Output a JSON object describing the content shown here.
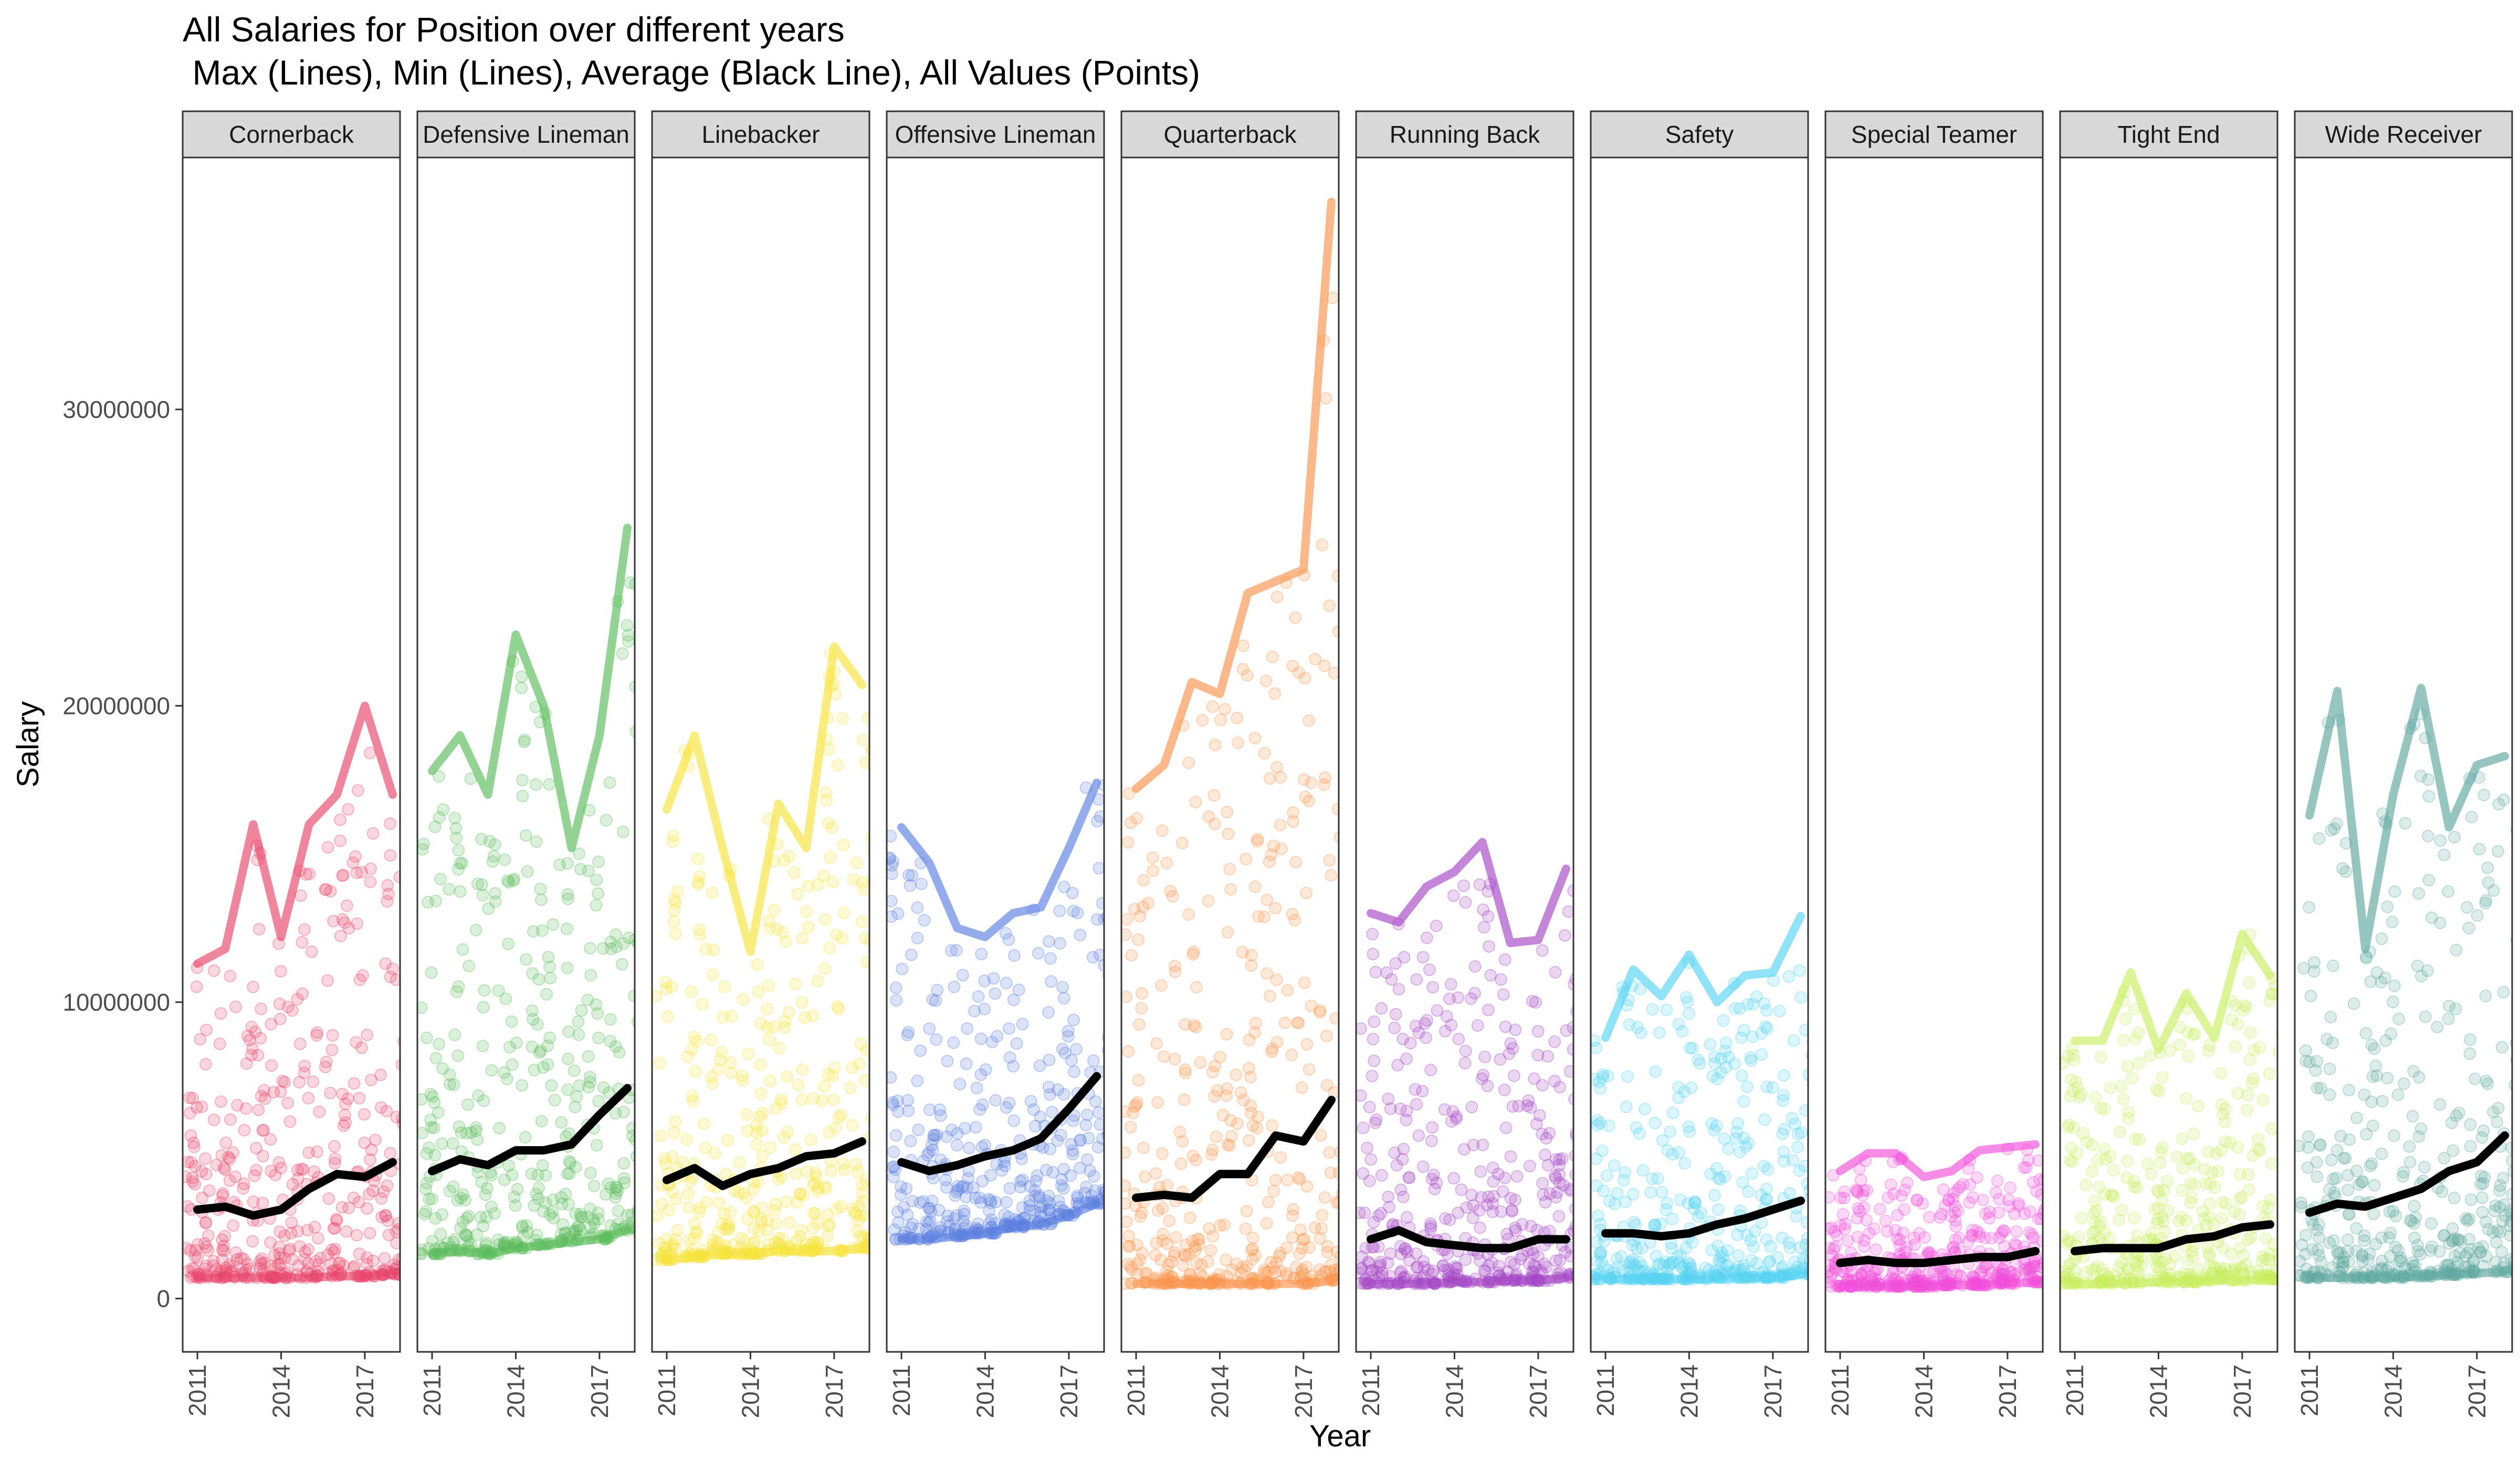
{
  "title_line1": "All Salaries for Position over different years",
  "title_line2": " Max (Lines), Min (Lines), Average (Black Line), All Values (Points)",
  "chart_data": {
    "type": "line",
    "layout": "faceted small multiples, one panel per position, shared y axis",
    "xlabel": "Year",
    "ylabel": "Salary",
    "x": [
      2011,
      2012,
      2013,
      2014,
      2015,
      2016,
      2017,
      2018
    ],
    "x_ticks": [
      "2011",
      "2014",
      "2017"
    ],
    "y_ticks": [
      "0",
      "10000000",
      "20000000",
      "30000000"
    ],
    "ylim": [
      -1800000,
      38500000
    ],
    "grid": false,
    "legend": "none",
    "panels": [
      {
        "name": "Cornerback",
        "color": "#e8436a",
        "max": [
          11300000,
          11800000,
          16000000,
          12200000,
          16000000,
          17000000,
          20000000,
          17000000
        ],
        "avg": [
          3000000,
          3100000,
          2800000,
          3000000,
          3700000,
          4200000,
          4100000,
          4600000
        ],
        "min": [
          700000,
          700000,
          700000,
          700000,
          700000,
          750000,
          750000,
          800000
        ]
      },
      {
        "name": "Defensive Lineman",
        "color": "#59bc59",
        "max": [
          17800000,
          19000000,
          17000000,
          22400000,
          20000000,
          15200000,
          19000000,
          26000000
        ],
        "avg": [
          4300000,
          4700000,
          4500000,
          5000000,
          5000000,
          5200000,
          6200000,
          7100000
        ],
        "min": [
          1500000,
          1600000,
          1500000,
          1700000,
          1800000,
          1900000,
          2000000,
          2300000
        ]
      },
      {
        "name": "Linebacker",
        "color": "#f7e33a",
        "max": [
          16500000,
          19000000,
          15200000,
          11700000,
          16700000,
          15200000,
          22000000,
          20700000
        ],
        "avg": [
          4000000,
          4400000,
          3800000,
          4200000,
          4400000,
          4800000,
          4900000,
          5300000
        ],
        "min": [
          1300000,
          1400000,
          1500000,
          1500000,
          1600000,
          1600000,
          1600000,
          1700000
        ]
      },
      {
        "name": "Offensive Lineman",
        "color": "#5b7fe0",
        "max": [
          15900000,
          14700000,
          12500000,
          12200000,
          13000000,
          13200000,
          15200000,
          17400000
        ],
        "avg": [
          4600000,
          4300000,
          4500000,
          4800000,
          5000000,
          5400000,
          6400000,
          7500000
        ],
        "min": [
          2000000,
          2000000,
          2100000,
          2200000,
          2400000,
          2500000,
          2800000,
          3200000
        ]
      },
      {
        "name": "Quarterback",
        "color": "#f9944d",
        "max": [
          17200000,
          18000000,
          20800000,
          20400000,
          23800000,
          24200000,
          24600000,
          37000000
        ],
        "avg": [
          3400000,
          3500000,
          3400000,
          4200000,
          4200000,
          5500000,
          5300000,
          6700000
        ],
        "min": [
          500000,
          500000,
          500000,
          500000,
          500000,
          500000,
          500000,
          600000
        ]
      },
      {
        "name": "Running Back",
        "color": "#a445c4",
        "max": [
          13000000,
          12700000,
          13900000,
          14400000,
          15400000,
          12000000,
          12100000,
          14500000
        ],
        "avg": [
          2000000,
          2300000,
          1900000,
          1800000,
          1700000,
          1700000,
          2000000,
          2000000
        ],
        "min": [
          500000,
          500000,
          500000,
          550000,
          550000,
          600000,
          600000,
          700000
        ]
      },
      {
        "name": "Safety",
        "color": "#55d3f2",
        "max": [
          8800000,
          11100000,
          10200000,
          11600000,
          10000000,
          10900000,
          11000000,
          12900000
        ],
        "avg": [
          2200000,
          2200000,
          2100000,
          2200000,
          2500000,
          2700000,
          3000000,
          3300000
        ],
        "min": [
          650000,
          650000,
          650000,
          650000,
          650000,
          700000,
          700000,
          800000
        ]
      },
      {
        "name": "Special Teamer",
        "color": "#f04fd9",
        "max": [
          4300000,
          4900000,
          4900000,
          4100000,
          4300000,
          5000000,
          5100000,
          5200000
        ],
        "avg": [
          1200000,
          1300000,
          1200000,
          1200000,
          1300000,
          1400000,
          1400000,
          1600000
        ],
        "min": [
          400000,
          400000,
          400000,
          400000,
          450000,
          450000,
          500000,
          550000
        ]
      },
      {
        "name": "Tight End",
        "color": "#c8ee5f",
        "max": [
          8700000,
          8700000,
          11000000,
          8400000,
          10300000,
          8800000,
          12300000,
          10900000
        ],
        "avg": [
          1600000,
          1700000,
          1700000,
          1700000,
          2000000,
          2100000,
          2400000,
          2500000
        ],
        "min": [
          500000,
          500000,
          500000,
          550000,
          550000,
          600000,
          600000,
          650000
        ]
      },
      {
        "name": "Wide Receiver",
        "color": "#5fa89f",
        "max": [
          16300000,
          20500000,
          11800000,
          17000000,
          20600000,
          15900000,
          18000000,
          18300000
        ],
        "avg": [
          2900000,
          3200000,
          3100000,
          3400000,
          3700000,
          4300000,
          4600000,
          5500000
        ],
        "min": [
          700000,
          700000,
          700000,
          700000,
          750000,
          800000,
          850000,
          900000
        ]
      }
    ]
  }
}
